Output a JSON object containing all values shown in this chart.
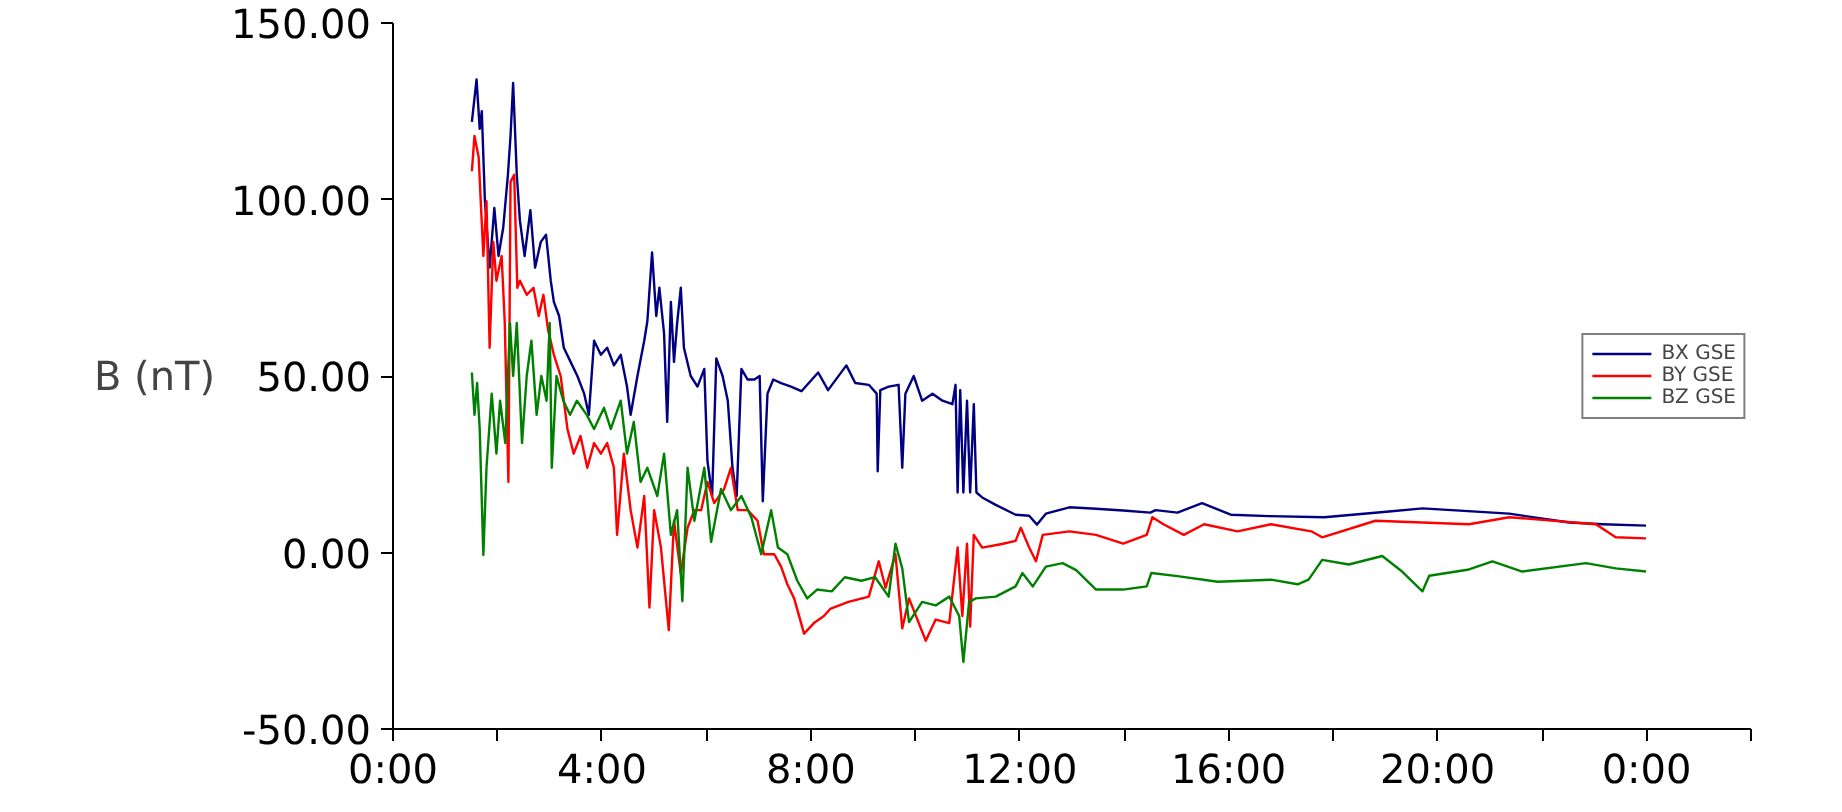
{
  "chart_data": {
    "type": "line",
    "ylabel": "B (nT)",
    "x": [
      1.51,
      1.6,
      1.66,
      1.7,
      1.76,
      1.85,
      1.94,
      2.02,
      2.11,
      2.2,
      2.25,
      2.3,
      2.37,
      2.43,
      2.52,
      2.63,
      2.72,
      2.83,
      2.93,
      3.02,
      3.08,
      3.18,
      3.27,
      3.4,
      3.53,
      3.66,
      3.75,
      3.85,
      3.98,
      4.1,
      4.23,
      4.36,
      4.48,
      4.55,
      4.68,
      4.81,
      4.87,
      4.96,
      5.04,
      5.1,
      5.19,
      5.25,
      5.32,
      5.38,
      5.44,
      5.51,
      5.57,
      5.7,
      5.83,
      5.96,
      6.02,
      6.11,
      6.19,
      6.31,
      6.41,
      6.5,
      6.58,
      6.67,
      6.79,
      6.92,
      7.02,
      7.08,
      7.17,
      7.28,
      7.43,
      7.62,
      7.82,
      8.14,
      8.33,
      8.68,
      8.85,
      9.11,
      9.26,
      9.28,
      9.33,
      9.49,
      9.68,
      9.75,
      9.81,
      9.97,
      10.13,
      10.33,
      10.52,
      10.71,
      10.77,
      10.81,
      10.86,
      10.92,
      10.99,
      11.05,
      11.12,
      11.17,
      11.28,
      11.54,
      11.92,
      12.18,
      12.33,
      12.5,
      12.95,
      13.46,
      13.98,
      14.5,
      14.6,
      15.02,
      15.49,
      16.04,
      16.77,
      17.83,
      19.07,
      19.71,
      21.37,
      22.52,
      23.16,
      23.99
    ],
    "series": [
      {
        "name": "BX GSE",
        "color": "#000080",
        "values": [
          122,
          134,
          120,
          125,
          99.5,
          80.7,
          97.6,
          84,
          92,
          107,
          118,
          133,
          107,
          94,
          84,
          97,
          80.7,
          88,
          90,
          77,
          71,
          67,
          58,
          54,
          50,
          45,
          39,
          60,
          56,
          58,
          53,
          56,
          47,
          39,
          50,
          60,
          65.5,
          85,
          67,
          75,
          62,
          37,
          71,
          54,
          65,
          75,
          58,
          50,
          47,
          52,
          26,
          16,
          55,
          50,
          43,
          24,
          16,
          52,
          49,
          49,
          50,
          14.5,
          45,
          49,
          48,
          47,
          45.7,
          51,
          46,
          53,
          48,
          47.5,
          45,
          23,
          46,
          47,
          47.5,
          24,
          45,
          50,
          43,
          45,
          43,
          42,
          47.5,
          17,
          46,
          17,
          43,
          17,
          42,
          17,
          15.6,
          13.5,
          10.7,
          10.4,
          7.9,
          11,
          12.8,
          12.4,
          11.9,
          11.3,
          12,
          11.3,
          14,
          10.7,
          10.3,
          10,
          11.6,
          12.5,
          11,
          8.5,
          8,
          7.6
        ]
      },
      {
        "name": "BY GSE",
        "color": "#ff0000",
        "x": [
          1.51,
          1.56,
          1.64,
          1.73,
          1.79,
          1.85,
          1.92,
          1.98,
          2.08,
          2.14,
          2.21,
          2.25,
          2.32,
          2.38,
          2.43,
          2.56,
          2.69,
          2.79,
          2.88,
          2.97,
          3.08,
          3.21,
          3.34,
          3.46,
          3.59,
          3.72,
          3.85,
          3.98,
          4.1,
          4.23,
          4.29,
          4.42,
          4.55,
          4.68,
          4.81,
          4.91,
          5.0,
          5.13,
          5.28,
          5.38,
          5.51,
          5.64,
          5.77,
          5.9,
          6.02,
          6.15,
          6.34,
          6.47,
          6.6,
          6.79,
          6.98,
          7.1,
          7.3,
          7.43,
          7.55,
          7.68,
          7.87,
          8.06,
          8.25,
          8.37,
          8.72,
          9.11,
          9.3,
          9.43,
          9.62,
          9.75,
          9.88,
          10.2,
          10.39,
          10.65,
          10.81,
          10.9,
          10.99,
          11.05,
          11.12,
          11.28,
          11.66,
          11.92,
          12.02,
          12.18,
          12.31,
          12.44,
          12.95,
          13.46,
          13.98,
          14.43,
          14.54,
          14.75,
          15.14,
          15.53,
          16.17,
          16.81,
          17.58,
          17.79,
          18.81,
          20.6,
          21.37,
          23.03,
          23.41,
          23.99
        ],
        "values": [
          108,
          118,
          112,
          84,
          99.5,
          58,
          88,
          77,
          84,
          65,
          20,
          105,
          107,
          75,
          77,
          73,
          75,
          67,
          73,
          63,
          56,
          50,
          35,
          28,
          33,
          24,
          31,
          28,
          31,
          24,
          5,
          28,
          12,
          1.4,
          16,
          -15.6,
          12,
          1.4,
          -22,
          9,
          -6,
          7,
          12,
          12,
          20,
          14,
          18,
          24,
          12,
          12,
          9,
          -0.5,
          -0.5,
          -4,
          -9,
          -13,
          -23,
          -20,
          -18,
          -16,
          -14,
          -12.5,
          -2.5,
          -10,
          -0.5,
          -21.5,
          -13,
          -25,
          -19,
          -20,
          1.4,
          -18,
          2.5,
          -21,
          5,
          1.4,
          2.4,
          3.3,
          7,
          1.4,
          -2.5,
          5,
          6,
          5,
          2.5,
          5,
          10,
          8,
          5,
          8,
          6,
          8,
          6,
          4.3,
          9,
          8,
          10,
          8,
          4.3,
          4
        ]
      },
      {
        "name": "BZ GSE",
        "color": "#008000",
        "x": [
          1.51,
          1.56,
          1.61,
          1.66,
          1.73,
          1.79,
          1.89,
          1.98,
          2.05,
          2.15,
          2.24,
          2.3,
          2.37,
          2.47,
          2.56,
          2.65,
          2.75,
          2.84,
          2.94,
          3.0,
          3.04,
          3.13,
          3.26,
          3.39,
          3.52,
          3.71,
          3.85,
          4.04,
          4.17,
          4.36,
          4.48,
          4.61,
          4.74,
          4.87,
          5.06,
          5.19,
          5.32,
          5.44,
          5.54,
          5.64,
          5.77,
          5.96,
          6.09,
          6.28,
          6.47,
          6.67,
          6.86,
          7.05,
          7.24,
          7.37,
          7.55,
          7.74,
          7.93,
          8.12,
          8.4,
          8.65,
          8.97,
          9.23,
          9.49,
          9.62,
          9.75,
          9.88,
          10.13,
          10.39,
          10.65,
          10.84,
          10.92,
          11.03,
          11.16,
          11.54,
          11.92,
          12.05,
          12.25,
          12.5,
          12.82,
          13.08,
          13.46,
          13.98,
          14.43,
          14.52,
          15.02,
          15.79,
          16.81,
          17.32,
          17.53,
          17.79,
          18.3,
          18.94,
          19.32,
          19.71,
          19.84,
          20.6,
          21.05,
          21.62,
          22.84,
          23.41,
          23.99
        ],
        "values": [
          51,
          39,
          48,
          35,
          -0.7,
          24,
          45,
          28,
          43,
          31,
          65,
          50,
          65,
          31,
          50,
          60,
          39,
          50,
          43,
          65,
          24,
          50,
          43,
          39,
          43,
          39,
          35,
          41,
          35,
          43,
          28,
          37,
          20,
          24,
          16,
          28,
          5,
          12,
          -13.8,
          24,
          9,
          24,
          3,
          18,
          12,
          16,
          10,
          -0.5,
          12,
          1.4,
          -0.5,
          -8,
          -13,
          -10.5,
          -11,
          -7,
          -8,
          -7,
          -12.5,
          2.5,
          -4.5,
          -19.7,
          -14,
          -15,
          -12.5,
          -18,
          -31,
          -14,
          -13,
          -12.5,
          -9.6,
          -5.8,
          -9.6,
          -4,
          -3,
          -5,
          -10.5,
          -10.5,
          -9.6,
          -5.8,
          -6.7,
          -8.3,
          -7.7,
          -9,
          -7.7,
          -2.1,
          -3.4,
          -1,
          -5.4,
          -11,
          -6.6,
          -4.8,
          -2.5,
          -5.4,
          -3,
          -4.5,
          -5.4
        ]
      }
    ],
    "xlim": [
      0,
      26
    ],
    "xticks": [
      {
        "value": 0,
        "label": "0:00"
      },
      {
        "value": 2,
        "label": null
      },
      {
        "value": 4,
        "label": "4:00"
      },
      {
        "value": 6,
        "label": null
      },
      {
        "value": 8,
        "label": "8:00"
      },
      {
        "value": 10,
        "label": null
      },
      {
        "value": 12,
        "label": "12:00"
      },
      {
        "value": 14,
        "label": null
      },
      {
        "value": 16,
        "label": "16:00"
      },
      {
        "value": 18,
        "label": null
      },
      {
        "value": 20,
        "label": "20:00"
      },
      {
        "value": 22,
        "label": null
      },
      {
        "value": 24,
        "label": "0:00"
      },
      {
        "value": 26,
        "label": null
      }
    ],
    "ylim": [
      -50,
      150
    ],
    "yticks": [
      {
        "value": -50,
        "label": "-50.00"
      },
      {
        "value": 0,
        "label": "0.00"
      },
      {
        "value": 50,
        "label": "50.00"
      },
      {
        "value": 100,
        "label": "100.00"
      },
      {
        "value": 150,
        "label": "150.00"
      }
    ],
    "grid": false,
    "legend": "right",
    "marker": "none",
    "line_style": "solid"
  }
}
